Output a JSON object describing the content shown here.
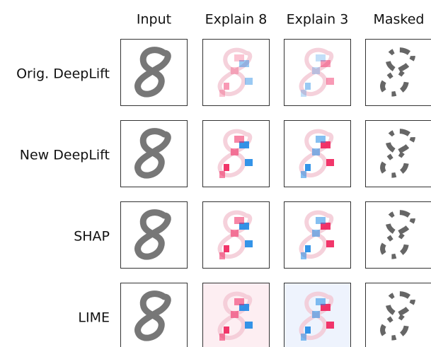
{
  "columns": [
    "Input",
    "Explain 8",
    "Explain 3",
    "Masked"
  ],
  "rows": [
    "Orig. DeepLift",
    "New DeepLift",
    "SHAP",
    "LIME"
  ]
}
